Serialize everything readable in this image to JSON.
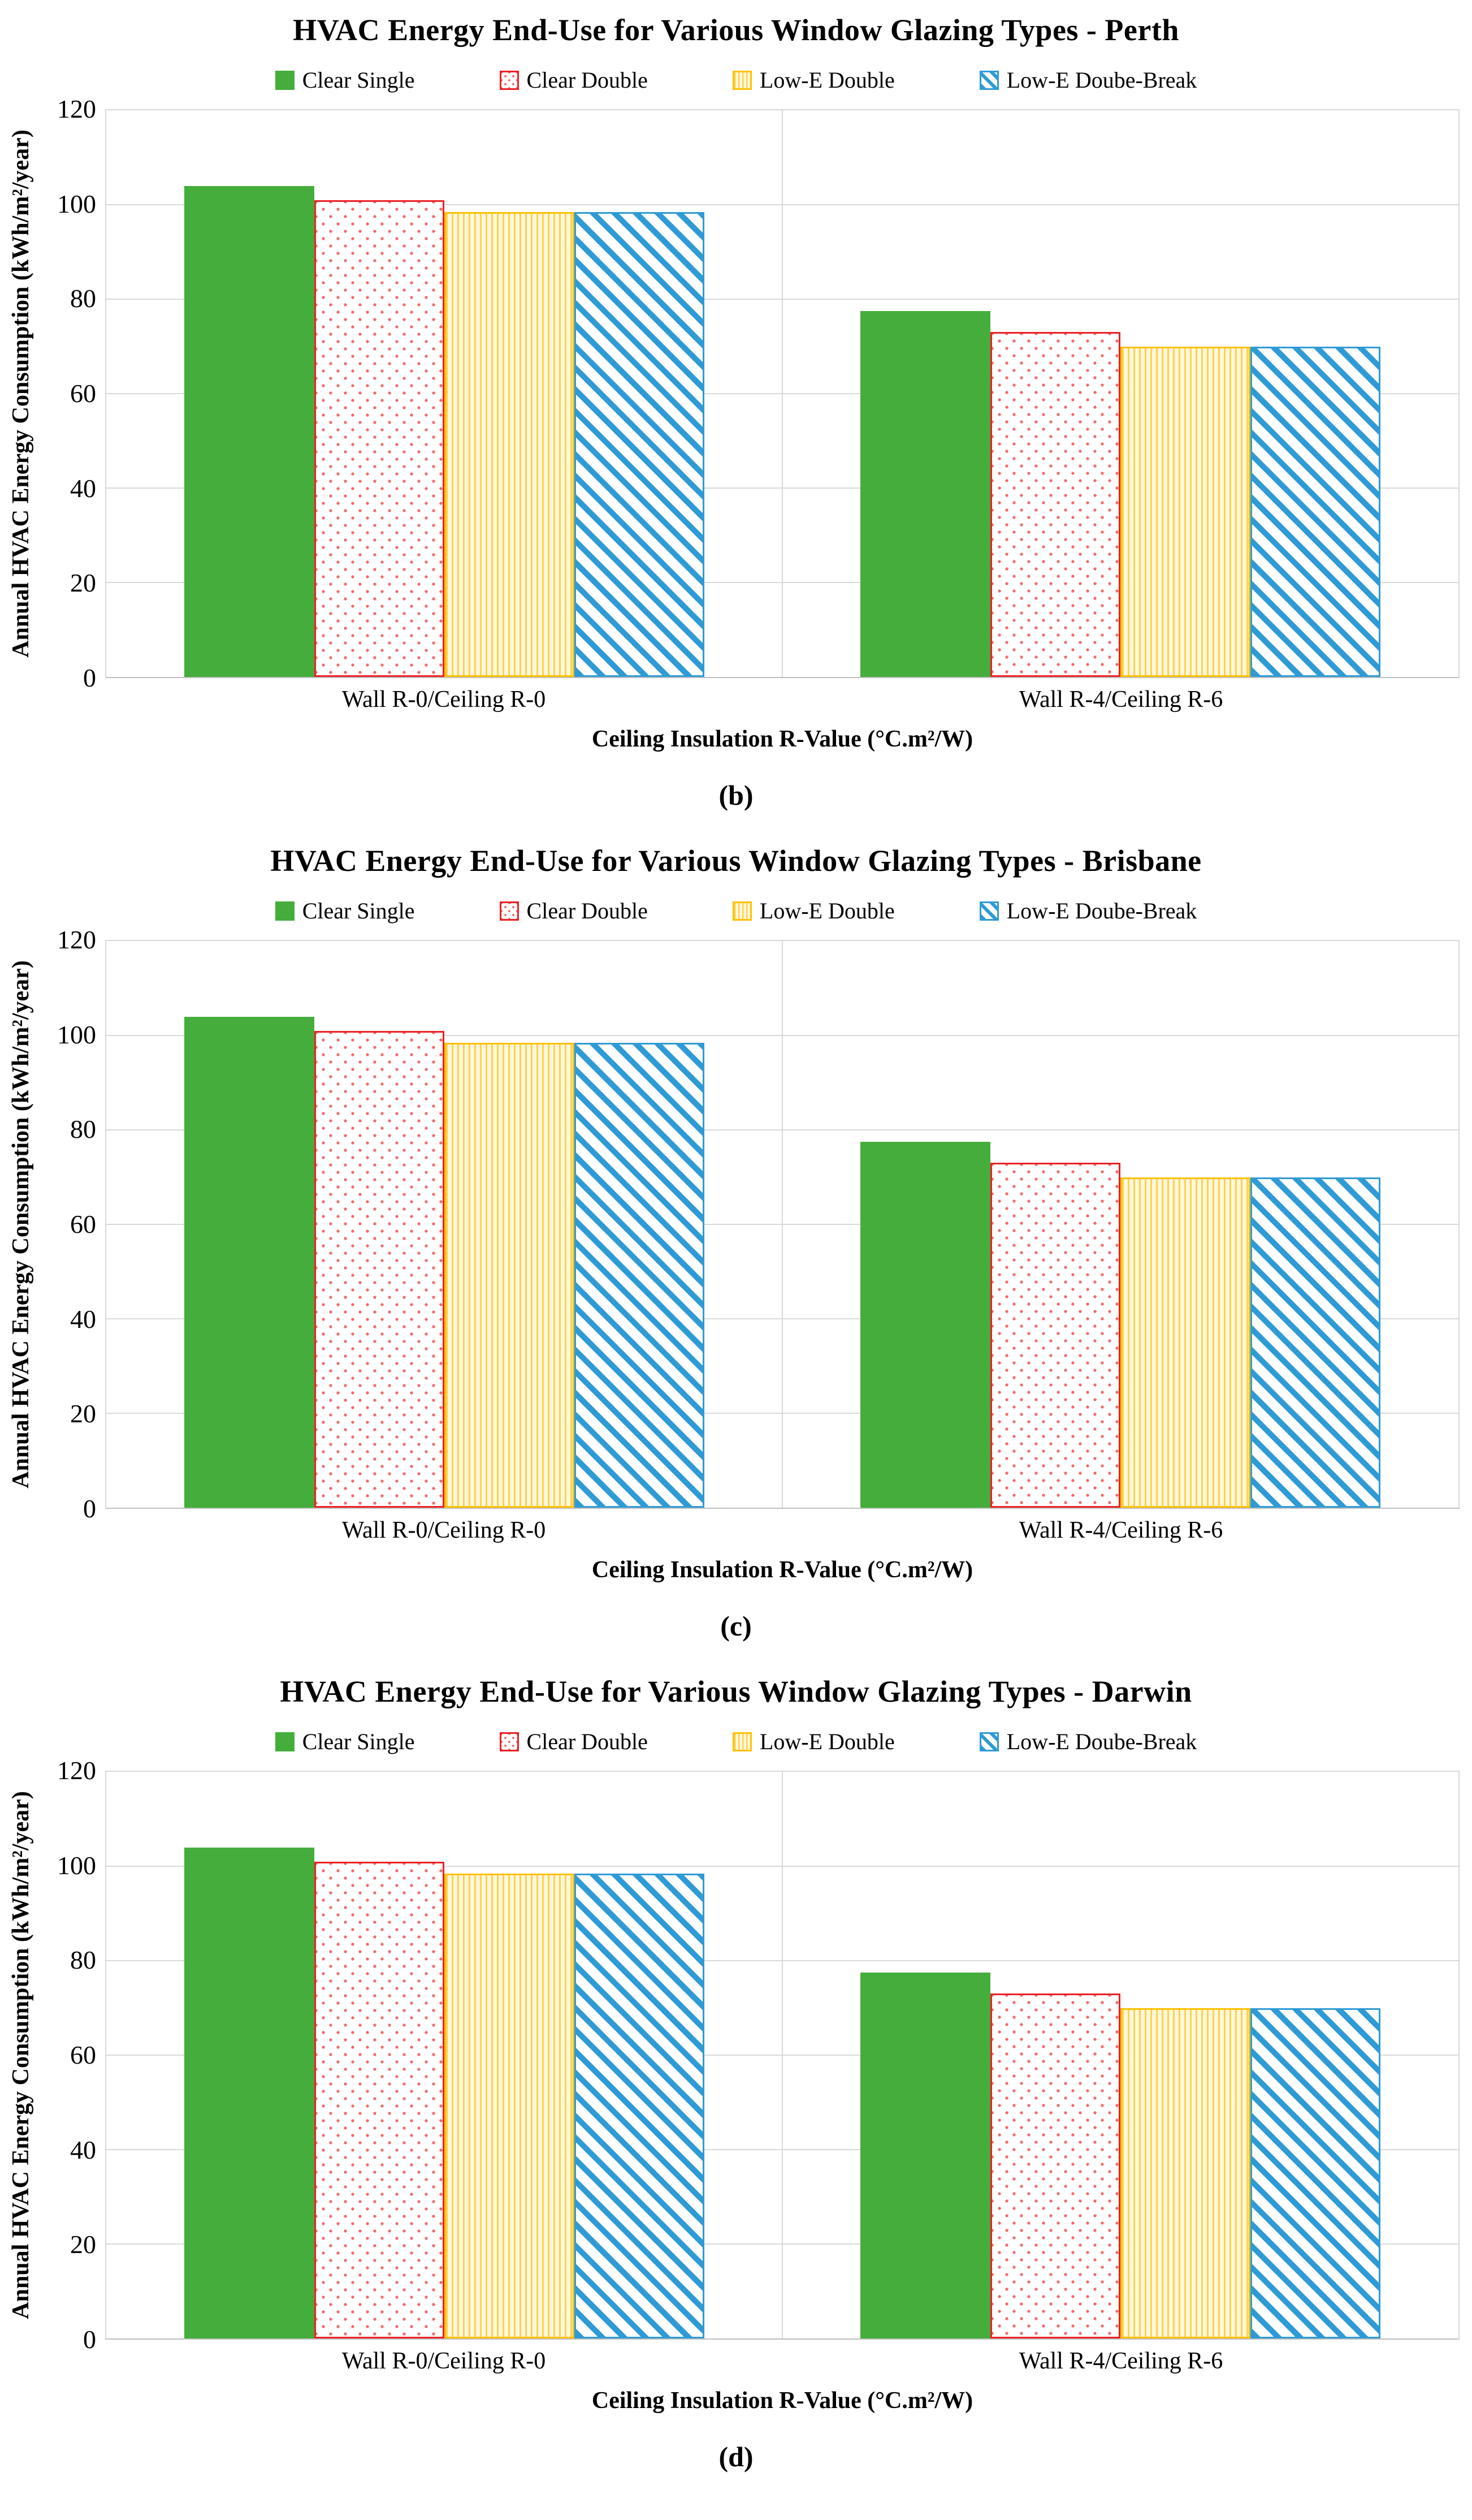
{
  "colors": {
    "clear_single_fill": "#44AD3B",
    "clear_double_border": "#EC2024",
    "clear_double_dot": "#F26A6A",
    "low_e_double_border": "#FFC000",
    "low_e_double_stripe": "#FFD24A",
    "low_e_double_bg": "#FFF7DE",
    "low_e_break_blue": "#2E9BD6",
    "gridline": "#D9D9D9",
    "axis_line": "#BFBFBF"
  },
  "chart_data": [
    {
      "type": "bar",
      "title": "HVAC Energy End-Use for Various Window Glazing Types - Perth",
      "caption": "(b)",
      "categories": [
        "Wall R-0/Ceiling R-0",
        "Wall R-4/Ceiling R-6"
      ],
      "series": [
        {
          "name": "Clear Single",
          "style": "clear-single",
          "values": [
            104,
            77.5
          ]
        },
        {
          "name": "Clear Double",
          "style": "clear-double",
          "values": [
            101,
            73
          ]
        },
        {
          "name": "Low-E Double",
          "style": "lowe-double",
          "values": [
            98.5,
            70
          ]
        },
        {
          "name": "Low-E Doube-Break",
          "style": "lowe-break",
          "values": [
            98.5,
            70
          ]
        }
      ],
      "xlabel": "Ceiling Insulation R-Value (°C.m²/W)",
      "ylabel": "Annual HVAC Energy Consumption (kWh/m²/year)",
      "ylim": [
        0,
        120
      ],
      "yticks": [
        0,
        20,
        40,
        60,
        80,
        100,
        120
      ],
      "grid": true,
      "legend_position": "top"
    },
    {
      "type": "bar",
      "title": "HVAC Energy End-Use for Various Window Glazing Types - Brisbane",
      "caption": "(c)",
      "categories": [
        "Wall R-0/Ceiling R-0",
        "Wall R-4/Ceiling R-6"
      ],
      "series": [
        {
          "name": "Clear Single",
          "style": "clear-single",
          "values": [
            104,
            77.5
          ]
        },
        {
          "name": "Clear Double",
          "style": "clear-double",
          "values": [
            101,
            73
          ]
        },
        {
          "name": "Low-E Double",
          "style": "lowe-double",
          "values": [
            98.5,
            70
          ]
        },
        {
          "name": "Low-E Doube-Break",
          "style": "lowe-break",
          "values": [
            98.5,
            70
          ]
        }
      ],
      "xlabel": "Ceiling Insulation R-Value (°C.m²/W)",
      "ylabel": "Annual HVAC Energy Consumption (kWh/m²/year)",
      "ylim": [
        0,
        120
      ],
      "yticks": [
        0,
        20,
        40,
        60,
        80,
        100,
        120
      ],
      "grid": true,
      "legend_position": "top"
    },
    {
      "type": "bar",
      "title": "HVAC Energy End-Use for Various Window Glazing Types - Darwin",
      "caption": "(d)",
      "categories": [
        "Wall R-0/Ceiling R-0",
        "Wall R-4/Ceiling R-6"
      ],
      "series": [
        {
          "name": "Clear Single",
          "style": "clear-single",
          "values": [
            104,
            77.5
          ]
        },
        {
          "name": "Clear Double",
          "style": "clear-double",
          "values": [
            101,
            73
          ]
        },
        {
          "name": "Low-E Double",
          "style": "lowe-double",
          "values": [
            98.5,
            70
          ]
        },
        {
          "name": "Low-E Doube-Break",
          "style": "lowe-break",
          "values": [
            98.5,
            70
          ]
        }
      ],
      "xlabel": "Ceiling Insulation R-Value (°C.m²/W)",
      "ylabel": "Annual HVAC Energy Consumption (kWh/m²/year)",
      "ylim": [
        0,
        120
      ],
      "yticks": [
        0,
        20,
        40,
        60,
        80,
        100,
        120
      ],
      "grid": true,
      "legend_position": "top"
    }
  ]
}
